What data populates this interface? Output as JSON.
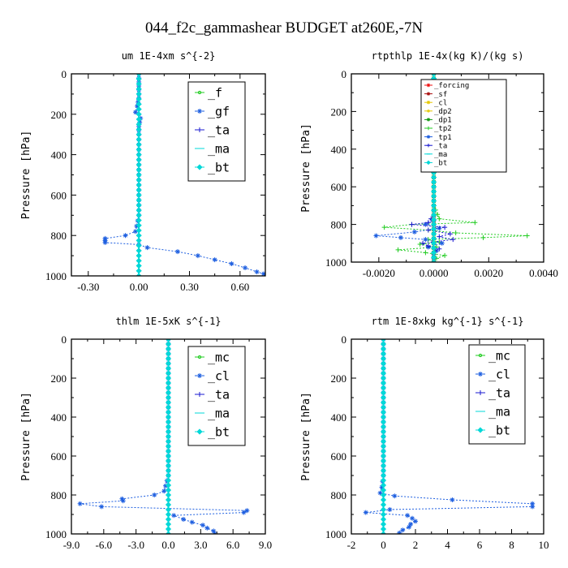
{
  "figure": {
    "title": "044_f2c_gammashear  BUDGET at260E,-7N"
  },
  "colors": {
    "green": "#22cc22",
    "blue": "#1e5fe0",
    "light_blue": "#1e90ff",
    "navy": "#1a1ad0",
    "cyan": "#00d8d8",
    "red": "#ee1111",
    "dark_red": "#aa1111",
    "yellow": "#e6c800",
    "dark_green": "#119911"
  },
  "chart_data": [
    {
      "type": "line",
      "title": "um   1E-4xm s^{-2}",
      "ylabel": "Pressure [hPa]",
      "xlim": [
        -0.4,
        0.75
      ],
      "ylim": [
        1000,
        0
      ],
      "xticks": [
        -0.3,
        0.0,
        0.3,
        0.6
      ],
      "xtick_labels": [
        "-0.30",
        "0.00",
        "0.30",
        "0.60"
      ],
      "yticks": [
        0,
        200,
        400,
        600,
        800,
        1000
      ],
      "ytick_labels": [
        "0",
        "200",
        "400",
        "600",
        "800",
        "1000"
      ],
      "legend_placement": "top-right",
      "series": [
        {
          "name": "_f",
          "color": "#22cc22",
          "marker": "circle",
          "p": [
            0,
            50,
            100,
            150,
            200,
            250,
            300,
            350,
            400,
            450,
            500,
            550,
            600,
            650,
            700,
            750,
            800,
            850,
            900,
            950,
            1000
          ],
          "x": [
            0,
            0,
            0,
            0,
            0,
            0,
            0,
            0,
            0,
            0,
            0,
            0,
            0,
            0,
            0,
            0,
            0,
            0,
            0,
            0,
            0
          ]
        },
        {
          "name": "_gf",
          "color": "#1e5fe0",
          "marker": "star",
          "p": [
            0,
            40,
            80,
            120,
            160,
            190,
            220,
            260,
            300,
            400,
            500,
            600,
            700,
            780,
            800,
            815,
            825,
            835,
            845,
            860,
            880,
            900,
            920,
            940,
            960,
            980,
            990,
            1000
          ],
          "x": [
            0,
            0,
            0,
            0,
            -0.01,
            -0.02,
            0.01,
            0.0,
            0.0,
            0.0,
            0.0,
            0.0,
            0.0,
            -0.02,
            -0.08,
            -0.2,
            -0.2,
            -0.2,
            0.0,
            0.05,
            0.23,
            0.35,
            0.45,
            0.55,
            0.63,
            0.7,
            0.74,
            0.75
          ]
        },
        {
          "name": "_ta",
          "color": "#1a1ad0",
          "marker": "plus",
          "p": [
            0,
            200,
            400,
            600,
            800,
            1000
          ],
          "x": [
            0,
            0,
            0,
            0,
            0,
            0
          ]
        },
        {
          "name": "_ma",
          "color": "#00d8d8",
          "marker": "dash",
          "p": [
            0,
            200,
            400,
            600,
            800,
            1000
          ],
          "x": [
            0,
            0,
            0,
            0,
            0,
            0
          ]
        },
        {
          "name": "_bt",
          "color": "#00d8d8",
          "marker": "diamond",
          "p": [
            0,
            200,
            400,
            600,
            800,
            1000
          ],
          "x": [
            0,
            0,
            0,
            0,
            0,
            0
          ]
        }
      ]
    },
    {
      "type": "line",
      "title": "rtpthlp   1E-4x(kg K)/(kg s)",
      "ylabel": "Pressure [hPa]",
      "xlim": [
        -0.003,
        0.004
      ],
      "ylim": [
        1000,
        0
      ],
      "xticks": [
        -0.002,
        0.0,
        0.002,
        0.004
      ],
      "xtick_labels": [
        "-0.0020",
        "0.0000",
        "0.0020",
        "0.0040"
      ],
      "yticks": [
        0,
        200,
        400,
        600,
        800,
        1000
      ],
      "ytick_labels": [
        "0",
        "200",
        "400",
        "600",
        "800",
        "1000"
      ],
      "legend_placement": "top-right",
      "series": [
        {
          "name": "_forcing",
          "color": "#ee1111",
          "marker": "star",
          "p": [
            0,
            50,
            100,
            150,
            200,
            250,
            300,
            350,
            400,
            450,
            500,
            550,
            600,
            650,
            700,
            750,
            800,
            850,
            900,
            950,
            1000
          ],
          "x": [
            0,
            0,
            0,
            0,
            0,
            0,
            0,
            0,
            0,
            0,
            0,
            0,
            0,
            0,
            0,
            0,
            0,
            0,
            0,
            0,
            0
          ]
        },
        {
          "name": "_sf",
          "color": "#aa1111",
          "marker": "star",
          "p": [
            0,
            200,
            400,
            600,
            800,
            1000
          ],
          "x": [
            0,
            0,
            0,
            0,
            0,
            0
          ]
        },
        {
          "name": "_cl",
          "color": "#e6c800",
          "marker": "star",
          "p": [
            0,
            200,
            400,
            600,
            800,
            1000
          ],
          "x": [
            0,
            0,
            0,
            0,
            0,
            0
          ]
        },
        {
          "name": "_dp2",
          "color": "#e6c800",
          "marker": "circle",
          "p": [
            0,
            200,
            400,
            600,
            800,
            1000
          ],
          "x": [
            0,
            0,
            0,
            0,
            0,
            0
          ]
        },
        {
          "name": "_dp1",
          "color": "#119911",
          "marker": "star",
          "p": [
            0,
            200,
            400,
            600,
            800,
            1000
          ],
          "x": [
            0,
            0,
            0,
            0,
            0,
            0
          ]
        },
        {
          "name": "_tp2",
          "color": "#22cc22",
          "marker": "plus",
          "p": [
            0,
            700,
            770,
            790,
            800,
            815,
            830,
            845,
            860,
            870,
            880,
            895,
            905,
            920,
            935,
            950,
            965,
            980,
            1000
          ],
          "x": [
            0,
            0,
            0.0002,
            0.0015,
            -0.0008,
            -0.0018,
            -0.0002,
            0.0008,
            0.0034,
            0.0018,
            -0.0002,
            0.0002,
            -0.0005,
            0.0001,
            -0.0013,
            -0.0003,
            0.0004,
            0.0001,
            0
          ]
        },
        {
          "name": "_tp1",
          "color": "#1e5fe0",
          "marker": "star",
          "p": [
            0,
            700,
            780,
            800,
            820,
            840,
            860,
            870,
            880,
            900,
            920,
            940,
            960,
            1000
          ],
          "x": [
            0,
            0,
            0,
            -0.0003,
            0.0002,
            -0.0007,
            -0.0021,
            -0.0012,
            -0.0003,
            0.0003,
            -0.0002,
            0.0001,
            0,
            0
          ]
        },
        {
          "name": "_ta",
          "color": "#1a1ad0",
          "marker": "plus",
          "p": [
            0,
            750,
            790,
            800,
            815,
            830,
            850,
            865,
            880,
            900,
            915,
            930,
            950,
            1000
          ],
          "x": [
            0,
            0,
            -0.0002,
            -0.0008,
            0.0004,
            -0.0002,
            0.0006,
            0.0002,
            0.0007,
            -0.0004,
            -0.0002,
            0.0002,
            0,
            0
          ]
        },
        {
          "name": "_ma",
          "color": "#00d8d8",
          "marker": "dash",
          "p": [
            0,
            200,
            400,
            600,
            800,
            1000
          ],
          "x": [
            0,
            0,
            0,
            0,
            0,
            0
          ]
        },
        {
          "name": "_bt",
          "color": "#00d8d8",
          "marker": "diamond",
          "p": [
            0,
            200,
            400,
            600,
            800,
            1000
          ],
          "x": [
            0,
            0,
            0,
            0,
            0,
            0
          ]
        }
      ]
    },
    {
      "type": "line",
      "title": "thlm   1E-5xK s^{-1}",
      "ylabel": "Pressure [hPa]",
      "xlim": [
        -9.0,
        9.0
      ],
      "ylim": [
        1000,
        0
      ],
      "xticks": [
        -9.0,
        -6.0,
        -3.0,
        0.0,
        3.0,
        6.0,
        9.0
      ],
      "xtick_labels": [
        "-9.0",
        "-6.0",
        "-3.0",
        "0.0",
        "3.0",
        "6.0",
        "9.0"
      ],
      "yticks": [
        0,
        200,
        400,
        600,
        800,
        1000
      ],
      "ytick_labels": [
        "0",
        "200",
        "400",
        "600",
        "800",
        "1000"
      ],
      "legend_placement": "top-right",
      "series": [
        {
          "name": "_mc",
          "color": "#22cc22",
          "marker": "circle",
          "p": [
            0,
            50,
            100,
            150,
            200,
            250,
            300,
            350,
            400,
            450,
            500,
            550,
            600,
            650,
            700,
            750,
            800,
            850,
            900,
            950,
            1000
          ],
          "x": [
            0,
            0,
            0,
            0,
            0,
            0,
            0,
            0,
            0,
            0,
            0,
            0,
            0,
            0,
            0,
            0,
            0,
            0,
            0,
            0,
            0
          ]
        },
        {
          "name": "_cl",
          "color": "#1e5fe0",
          "marker": "star",
          "p": [
            0,
            100,
            200,
            300,
            400,
            500,
            600,
            700,
            780,
            800,
            820,
            830,
            845,
            860,
            880,
            890,
            905,
            925,
            940,
            955,
            970,
            985,
            1000
          ],
          "x": [
            0,
            0,
            0,
            0,
            0,
            0,
            0,
            0,
            -0.4,
            -1.3,
            -4.3,
            -4.2,
            -8.2,
            -6.2,
            7.3,
            7.0,
            0.5,
            1.4,
            2.2,
            3.2,
            3.6,
            4.2,
            4.3
          ]
        },
        {
          "name": "_ta",
          "color": "#1a1ad0",
          "marker": "plus",
          "p": [
            0,
            200,
            400,
            600,
            800,
            1000
          ],
          "x": [
            0,
            0,
            0,
            0,
            0,
            0
          ]
        },
        {
          "name": "_ma",
          "color": "#00d8d8",
          "marker": "dash",
          "p": [
            0,
            200,
            400,
            600,
            800,
            1000
          ],
          "x": [
            0,
            0,
            0,
            0,
            0,
            0
          ]
        },
        {
          "name": "_bt",
          "color": "#00d8d8",
          "marker": "diamond",
          "p": [
            0,
            200,
            400,
            600,
            800,
            1000
          ],
          "x": [
            0,
            0,
            0,
            0,
            0,
            0
          ]
        }
      ]
    },
    {
      "type": "line",
      "title": "rtm   1E-8xkg kg^{-1} s^{-1}",
      "ylabel": "Pressure [hPa]",
      "xlim": [
        -2.0,
        10.0
      ],
      "ylim": [
        1000,
        0
      ],
      "xticks": [
        -2,
        0,
        2,
        4,
        6,
        8,
        10
      ],
      "xtick_labels": [
        "-2",
        "0",
        "2",
        "4",
        "6",
        "8",
        "10"
      ],
      "yticks": [
        0,
        200,
        400,
        600,
        800,
        1000
      ],
      "ytick_labels": [
        "0",
        "200",
        "400",
        "600",
        "800",
        "1000"
      ],
      "legend_placement": "top-right",
      "series": [
        {
          "name": "_mc",
          "color": "#22cc22",
          "marker": "circle",
          "p": [
            0,
            50,
            100,
            150,
            200,
            250,
            300,
            350,
            400,
            450,
            500,
            550,
            600,
            650,
            700,
            750,
            800,
            850,
            900,
            950,
            1000
          ],
          "x": [
            0,
            0,
            0,
            0,
            0,
            0,
            0,
            0,
            0,
            0,
            0,
            0,
            0,
            0,
            0,
            0,
            0,
            0,
            0,
            0,
            0
          ]
        },
        {
          "name": "_cl",
          "color": "#1e5fe0",
          "marker": "star",
          "p": [
            0,
            100,
            200,
            300,
            400,
            500,
            600,
            700,
            760,
            790,
            805,
            825,
            845,
            860,
            875,
            890,
            905,
            920,
            935,
            950,
            965,
            980,
            995
          ],
          "x": [
            0,
            0,
            0,
            0,
            0,
            0,
            0,
            0,
            -0.1,
            -0.2,
            0.7,
            4.3,
            9.3,
            9.3,
            0.4,
            -1.1,
            1.5,
            1.8,
            2.0,
            1.7,
            1.6,
            1.2,
            1.0
          ]
        },
        {
          "name": "_ta",
          "color": "#1a1ad0",
          "marker": "plus",
          "p": [
            0,
            200,
            400,
            600,
            800,
            1000
          ],
          "x": [
            0,
            0,
            0,
            0,
            0,
            0
          ]
        },
        {
          "name": "_ma",
          "color": "#00d8d8",
          "marker": "dash",
          "p": [
            0,
            200,
            400,
            600,
            800,
            1000
          ],
          "x": [
            0,
            0,
            0,
            0,
            0,
            0
          ]
        },
        {
          "name": "_bt",
          "color": "#00d8d8",
          "marker": "diamond",
          "p": [
            0,
            200,
            400,
            600,
            800,
            1000
          ],
          "x": [
            0,
            0,
            0,
            0,
            0,
            0
          ]
        }
      ]
    }
  ]
}
